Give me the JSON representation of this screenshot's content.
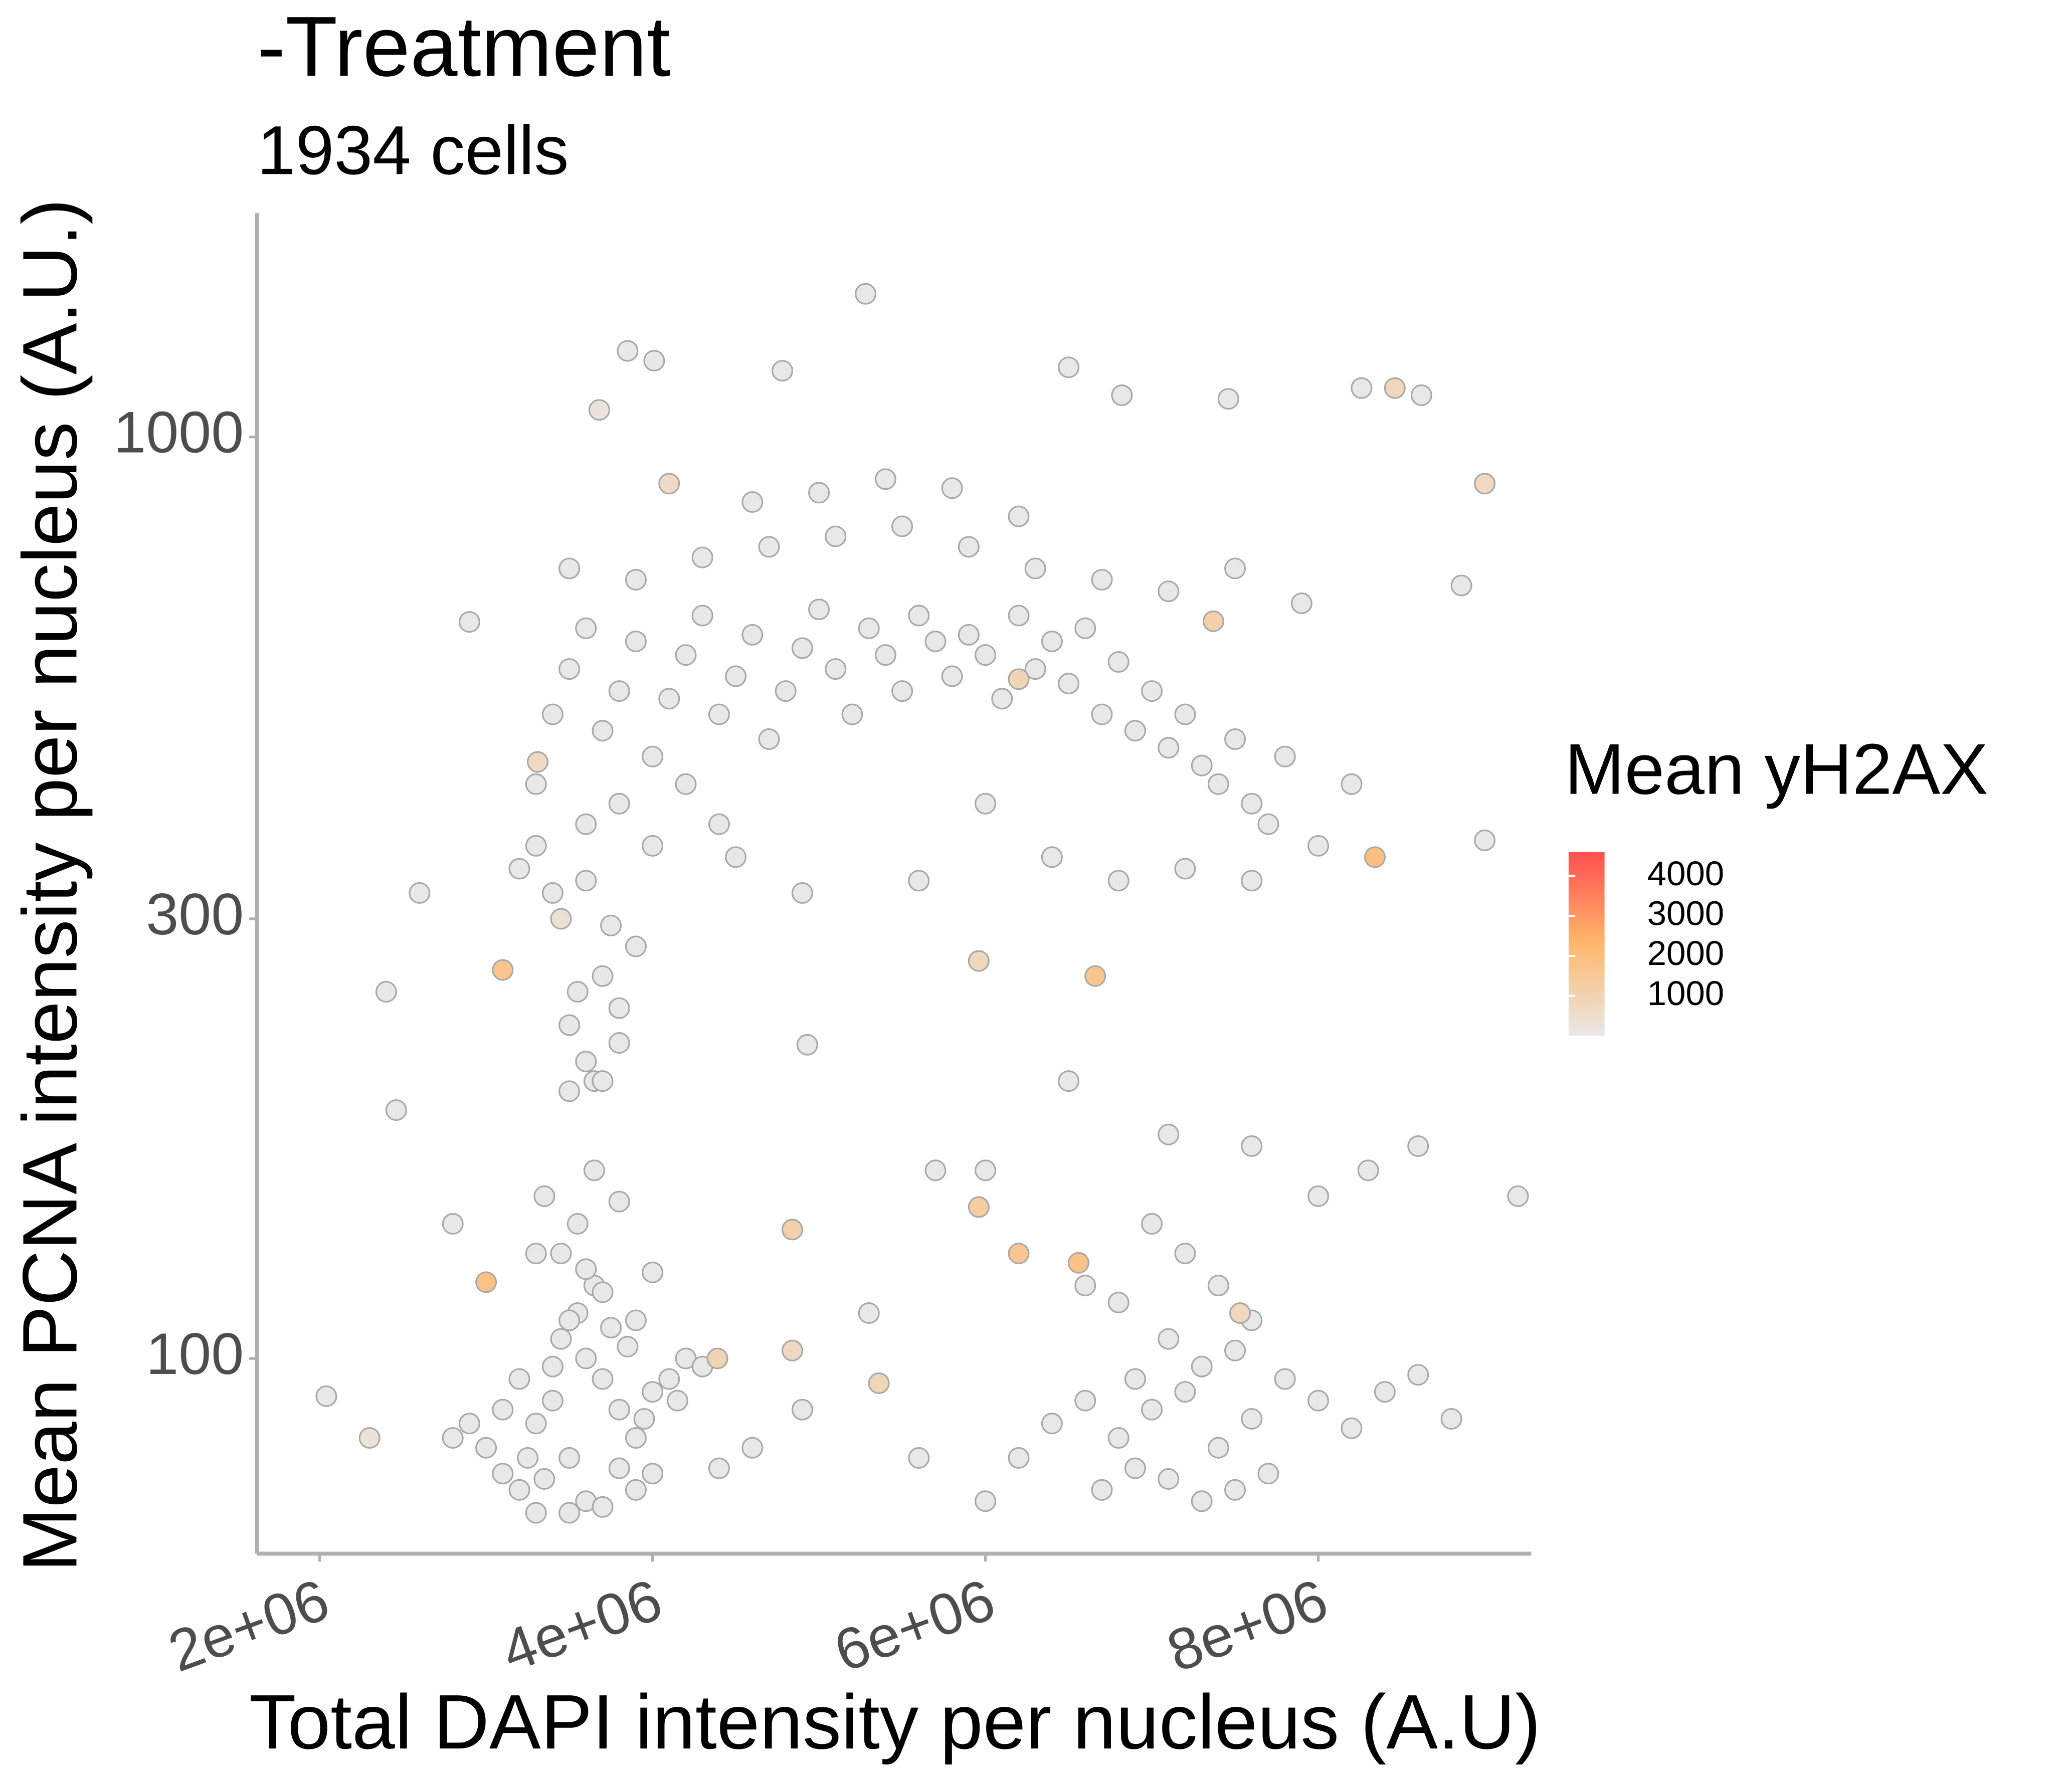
{
  "chart_data": {
    "type": "scatter",
    "title": "-Treatment",
    "subtitle": "1934 cells",
    "x_label": "Total DAPI intensity per nucleus (A.U)",
    "y_label": "Mean PCNA intensity per nucleus (A.U.)",
    "legend_title": "Mean yH2AX",
    "xlim": [
      1624000,
      9280000
    ],
    "ylim": [
      61.4,
      1750
    ],
    "ylog": true,
    "xticks": [
      {
        "value": 2000000,
        "label": "2e+06"
      },
      {
        "value": 4000000,
        "label": "4e+06"
      },
      {
        "value": 6000000,
        "label": "6e+06"
      },
      {
        "value": 8000000,
        "label": "8e+06"
      }
    ],
    "yticks": [
      100,
      300,
      1000
    ],
    "clim": [
      0,
      4600
    ],
    "cticks": [
      1000,
      2000,
      3000,
      4000
    ],
    "colorscale": [
      "#e8e8e8",
      "#ffb86b",
      "#ff4f4f"
    ],
    "marker_edge_color": "#a8a8a8",
    "series": [
      {
        "name": "Mean yH2AX",
        "x": [
          5280000.0,
          3850000.0,
          4010000.0,
          4780000.0,
          6500000.0,
          3680000.0,
          8260000.0,
          8460000.0,
          8620000.0,
          6820000.0,
          7460000.0,
          9000000.0,
          2900000.0,
          2460000.0,
          9200000.0,
          9000000.0,
          8860000.0,
          8340000.0,
          2040000.0,
          2300000.0,
          2600000.0,
          2800000.0,
          2400000.0,
          3000000.0,
          3100000.0,
          3200000.0,
          3300000.0,
          3400000.0,
          3500000.0,
          3600000.0,
          3700000.0,
          3800000.0,
          3900000.0,
          4000000.0,
          3200000.0,
          3400000.0,
          3600000.0,
          3800000.0,
          3300000.0,
          3500000.0,
          3700000.0,
          3900000.0,
          4100000.0,
          4200000.0,
          4300000.0,
          4000000.0,
          3100000.0,
          2900000.0,
          2800000.0,
          3450000.0,
          3550000.0,
          3650000.0,
          3750000.0,
          3850000.0,
          3950000.0,
          4150000.0,
          3250000.0,
          3350000.0,
          3500000.0,
          3600000.0,
          3700000.0,
          3450000.0,
          3550000.0,
          3650000.0,
          3800000.0,
          3900000.0,
          4000000.0,
          3000000.0,
          3300000.0,
          3350000.0,
          3100000.0,
          3500000.0,
          3600000.0,
          3650000.0,
          3550000.0,
          3700000.0,
          3800000.0,
          3450000.0,
          3400000.0,
          3600000.0,
          3750000.0,
          3900000.0,
          3200000.0,
          3300000.0,
          3700000.0,
          3500000.0,
          3800000.0,
          3300000.0,
          3400000.0,
          3500000.0,
          3600000.0,
          3700000.0,
          3800000.0,
          3900000.0,
          4000000.0,
          4100000.0,
          4200000.0,
          4300000.0,
          4400000.0,
          4500000.0,
          4600000.0,
          4700000.0,
          4800000.0,
          4900000.0,
          5000000.0,
          5100000.0,
          5200000.0,
          5300000.0,
          5400000.0,
          5500000.0,
          5600000.0,
          5700000.0,
          5800000.0,
          5900000.0,
          6000000.0,
          6100000.0,
          6200000.0,
          6300000.0,
          6400000.0,
          6500000.0,
          6600000.0,
          6700000.0,
          6800000.0,
          6900000.0,
          7000000.0,
          7100000.0,
          7200000.0,
          7300000.0,
          7400000.0,
          7500000.0,
          7600000.0,
          7700000.0,
          7800000.0,
          3600000.0,
          3800000.0,
          4000000.0,
          4200000.0,
          4400000.0,
          3500000.0,
          3900000.0,
          4300000.0,
          4700000.0,
          5100000.0,
          5500000.0,
          5900000.0,
          6300000.0,
          6700000.0,
          7100000.0,
          7500000.0,
          7900000.0,
          4600000.0,
          5000000.0,
          5400000.0,
          5800000.0,
          6200000.0,
          4500000.0,
          4900000.0,
          5600000.0,
          6000000.0,
          6400000.0,
          6800000.0,
          7200000.0,
          7600000.0,
          8000000.0,
          8200000.0,
          5960000.0,
          6200000.0,
          7370000.0,
          3310000.0,
          4100000.0,
          6500000.0,
          4930000.0,
          7100000.0,
          6660000.0,
          6200000.0,
          6400000.0,
          6600000.0,
          6800000.0,
          7000000.0,
          7200000.0,
          7400000.0,
          7600000.0,
          7800000.0,
          8000000.0,
          8200000.0,
          7300000.0,
          7500000.0,
          7700000.0,
          7100000.0,
          6900000.0,
          6700000.0,
          7300000.0,
          7500000.0,
          7100000.0,
          6900000.0,
          8400000.0,
          8600000.0,
          8800000.0,
          7600000.0,
          7400000.0,
          7200000.0,
          7000000.0,
          6600000.0,
          6800000.0,
          7530000.0,
          6560000.0,
          6200000.0,
          5960000.0,
          8000000.0,
          8300000.0,
          8600000.0,
          7600000.0,
          6000000.0,
          5700000.0,
          4390000.0,
          4840000.0,
          4840000.0,
          5360000.0,
          5300000.0,
          4900000.0,
          4400000.0,
          4600000.0,
          5600000.0,
          6000000.0
        ],
        "values": [
          1430,
          1240,
          1210,
          1180,
          1190,
          1070,
          1130,
          1130,
          1110,
          1110,
          1100,
          890,
          630,
          186,
          150,
          365,
          690,
          350,
          91,
          82,
          320,
          140,
          250,
          80,
          75,
          72,
          85,
          90,
          78,
          70,
          95,
          88,
          82,
          92,
          95,
          98,
          100,
          76,
          68,
          68,
          69,
          72,
          95,
          100,
          98,
          75,
          88,
          85,
          82,
          105,
          112,
          120,
          108,
          103,
          86,
          90,
          78,
          74,
          110,
          125,
          118,
          130,
          140,
          160,
          148,
          110,
          124,
          121,
          130,
          150,
          264,
          230,
          210,
          200,
          250,
          260,
          240,
          300,
          320,
          330,
          295,
          280,
          340,
          360,
          200,
          195,
          220,
          420,
          500,
          560,
          620,
          480,
          530,
          600,
          450,
          520,
          580,
          640,
          500,
          550,
          610,
          470,
          530,
          590,
          650,
          560,
          500,
          620,
          580,
          530,
          640,
          600,
          550,
          610,
          580,
          520,
          640,
          560,
          600,
          540,
          620,
          500,
          570,
          480,
          530,
          460,
          500,
          440,
          420,
          470,
          400,
          380,
          450,
          380,
          400,
          360,
          420,
          380,
          720,
          700,
          740,
          760,
          780,
          800,
          760,
          720,
          700,
          680,
          720,
          660,
          850,
          870,
          900,
          880,
          820,
          350,
          320,
          330,
          400,
          350,
          330,
          340,
          330,
          360,
          420,
          270,
          546,
          631,
          444,
          890,
          200,
          219,
          175,
          260,
          78,
          85,
          90,
          82,
          88,
          92,
          80,
          86,
          95,
          90,
          84,
          70,
          72,
          75,
          74,
          76,
          72,
          98,
          102,
          105,
          95,
          92,
          96,
          86,
          110,
          120,
          130,
          140,
          120,
          115,
          112,
          127,
          130,
          146,
          150,
          160,
          170,
          170,
          160,
          160,
          100,
          138,
          102,
          94,
          112,
          88,
          76,
          80,
          78,
          70
        ],
        "color_values": [
          0,
          0,
          0,
          0,
          0,
          200,
          0,
          800,
          0,
          0,
          0,
          700,
          0,
          0,
          0,
          0,
          0,
          1900,
          0,
          300,
          0,
          0,
          0,
          0,
          0,
          0,
          0,
          0,
          0,
          0,
          0,
          0,
          0,
          0,
          0,
          0,
          0,
          0,
          0,
          0,
          0,
          0,
          0,
          0,
          0,
          0,
          0,
          0,
          0,
          0,
          0,
          0,
          0,
          0,
          0,
          0,
          0,
          0,
          0,
          0,
          0,
          0,
          0,
          0,
          0,
          0,
          0,
          1800,
          0,
          0,
          1700,
          0,
          0,
          0,
          0,
          0,
          0,
          400,
          0,
          0,
          0,
          0,
          0,
          0,
          0,
          0,
          0,
          0,
          0,
          0,
          0,
          0,
          0,
          0,
          0,
          0,
          0,
          0,
          0,
          0,
          0,
          0,
          0,
          0,
          0,
          0,
          0,
          0,
          0,
          0,
          0,
          0,
          0,
          0,
          0,
          0,
          0,
          0,
          0,
          0,
          0,
          0,
          0,
          0,
          0,
          0,
          0,
          0,
          0,
          0,
          0,
          0,
          0,
          0,
          0,
          0,
          0,
          0,
          0,
          0,
          0,
          0,
          0,
          0,
          0,
          0,
          0,
          0,
          0,
          0,
          0,
          0,
          0,
          0,
          0,
          0,
          0,
          0,
          0,
          0,
          0,
          0,
          0,
          0,
          0,
          800,
          900,
          1100,
          700,
          600,
          0,
          0,
          0,
          1600,
          0,
          0,
          0,
          0,
          0,
          0,
          0,
          0,
          0,
          0,
          0,
          0,
          0,
          0,
          0,
          0,
          0,
          0,
          0,
          0,
          0,
          0,
          0,
          0,
          0,
          0,
          0,
          0,
          0,
          0,
          800,
          1800,
          1600,
          1300,
          0,
          0,
          0,
          0,
          0,
          0,
          1000,
          1100,
          700,
          900,
          0,
          0,
          0,
          0,
          0,
          0
        ]
      }
    ]
  }
}
